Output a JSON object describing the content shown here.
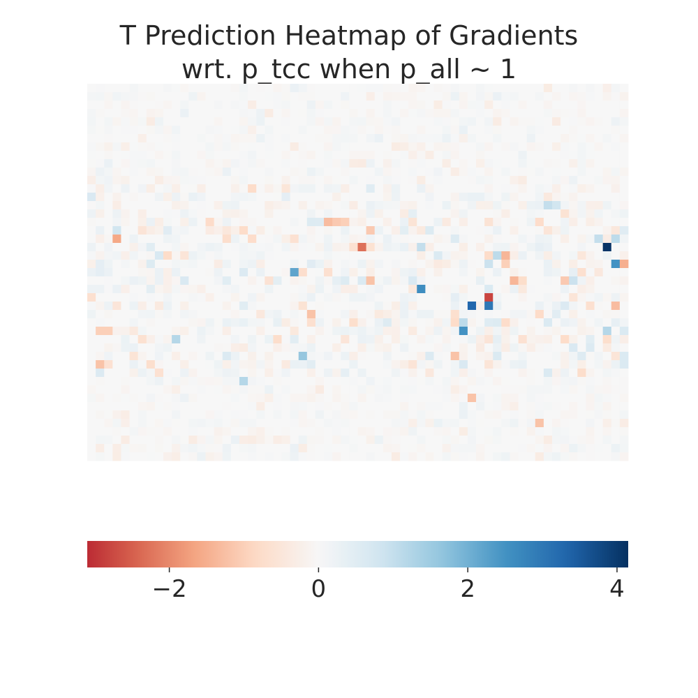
{
  "chart_data": {
    "type": "heatmap",
    "title_line1": "T Prediction Heatmap of Gradients",
    "title_line2": "wrt. p_tcc when p_all ~ 1",
    "xlabel": "",
    "ylabel": "",
    "rows": 45,
    "cols": 64,
    "colormap": "RdBu",
    "vmin": -3.1,
    "vmax": 4.15,
    "grid": false,
    "background_value": 0,
    "colorbar": {
      "position": "bottom",
      "ticks": [
        -2,
        0,
        2,
        4
      ],
      "tick_labels": [
        "−2",
        "0",
        "2",
        "4"
      ]
    },
    "notable_cells": [
      {
        "row": 19,
        "col": 61,
        "value": 4.1
      },
      {
        "row": 21,
        "col": 62,
        "value": 2.5
      },
      {
        "row": 21,
        "col": 63,
        "value": -1.5
      },
      {
        "row": 19,
        "col": 32,
        "value": -2.3
      },
      {
        "row": 18,
        "col": 3,
        "value": -1.6
      },
      {
        "row": 17,
        "col": 3,
        "value": 0.8
      },
      {
        "row": 16,
        "col": 28,
        "value": -1.3
      },
      {
        "row": 16,
        "col": 30,
        "value": -1.0
      },
      {
        "row": 17,
        "col": 33,
        "value": -1.1
      },
      {
        "row": 19,
        "col": 39,
        "value": 1.0
      },
      {
        "row": 20,
        "col": 48,
        "value": 1.1
      },
      {
        "row": 20,
        "col": 49,
        "value": -1.4
      },
      {
        "row": 22,
        "col": 24,
        "value": 2.2
      },
      {
        "row": 24,
        "col": 39,
        "value": 2.6
      },
      {
        "row": 23,
        "col": 33,
        "value": -1.2
      },
      {
        "row": 23,
        "col": 50,
        "value": -1.4
      },
      {
        "row": 23,
        "col": 56,
        "value": -1.1
      },
      {
        "row": 25,
        "col": 47,
        "value": -2.8
      },
      {
        "row": 26,
        "col": 45,
        "value": 3.3
      },
      {
        "row": 26,
        "col": 47,
        "value": 3.0
      },
      {
        "row": 26,
        "col": 62,
        "value": -1.3
      },
      {
        "row": 27,
        "col": 26,
        "value": -1.2
      },
      {
        "row": 28,
        "col": 44,
        "value": 1.1
      },
      {
        "row": 29,
        "col": 44,
        "value": 2.5
      },
      {
        "row": 29,
        "col": 61,
        "value": 1.2
      },
      {
        "row": 29,
        "col": 1,
        "value": -1.0
      },
      {
        "row": 29,
        "col": 2,
        "value": -1.0
      },
      {
        "row": 30,
        "col": 10,
        "value": 1.2
      },
      {
        "row": 32,
        "col": 25,
        "value": 1.6
      },
      {
        "row": 32,
        "col": 43,
        "value": -1.2
      },
      {
        "row": 33,
        "col": 1,
        "value": -1.2
      },
      {
        "row": 35,
        "col": 18,
        "value": 1.2
      },
      {
        "row": 37,
        "col": 45,
        "value": -1.2
      },
      {
        "row": 40,
        "col": 53,
        "value": -1.2
      },
      {
        "row": 14,
        "col": 54,
        "value": 1.0
      },
      {
        "row": 14,
        "col": 55,
        "value": 0.8
      },
      {
        "row": 18,
        "col": 60,
        "value": 1.0
      },
      {
        "row": 18,
        "col": 62,
        "value": 1.1
      },
      {
        "row": 23,
        "col": 57,
        "value": 0.9
      },
      {
        "row": 21,
        "col": 49,
        "value": -1.0
      },
      {
        "row": 21,
        "col": 47,
        "value": 0.9
      },
      {
        "row": 16,
        "col": 29,
        "value": -1.1
      }
    ]
  }
}
